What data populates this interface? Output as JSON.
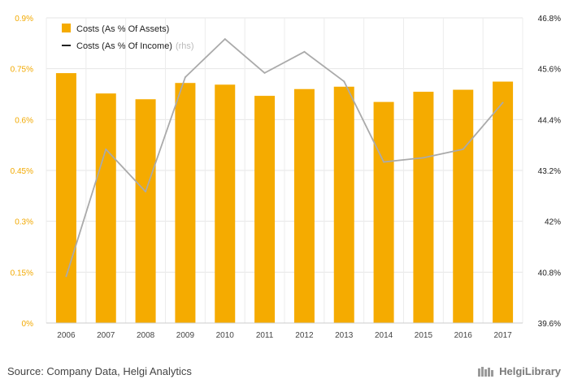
{
  "chart_data": {
    "type": "bar",
    "categories": [
      "2006",
      "2007",
      "2008",
      "2009",
      "2010",
      "2011",
      "2012",
      "2013",
      "2014",
      "2015",
      "2016",
      "2017"
    ],
    "series": [
      {
        "name": "Costs (As % Of Assets)",
        "axis": "left",
        "kind": "bar",
        "color": "#f5ab00",
        "values": [
          0.737,
          0.677,
          0.66,
          0.708,
          0.703,
          0.67,
          0.69,
          0.697,
          0.652,
          0.682,
          0.688,
          0.712
        ]
      },
      {
        "name": "Costs (As % Of Income)",
        "axis": "right",
        "kind": "line",
        "color": "#aaaaaa",
        "values": [
          40.7,
          43.7,
          42.7,
          45.4,
          46.3,
          45.5,
          46.0,
          45.3,
          43.4,
          43.5,
          43.7,
          44.8
        ]
      }
    ],
    "legend": {
      "position": "top-left",
      "items": [
        {
          "label": "Costs (As % Of Assets)",
          "marker": "bar-swatch"
        },
        {
          "label": "Costs (As % Of Income)",
          "suffix": "(rhs)",
          "marker": "line"
        }
      ]
    },
    "y_left": {
      "ylim": [
        0,
        0.9
      ],
      "ticks": [
        0,
        0.15,
        0.3,
        0.45,
        0.6,
        0.75,
        0.9
      ],
      "tick_labels": [
        "0%",
        "0.15%",
        "0.3%",
        "0.45%",
        "0.6%",
        "0.75%",
        "0.9%"
      ],
      "color": "#f2a900"
    },
    "y_right": {
      "ylim": [
        39.6,
        46.8
      ],
      "ticks": [
        39.6,
        40.8,
        42.0,
        43.2,
        44.4,
        45.6,
        46.8
      ],
      "tick_labels": [
        "39.6%",
        "40.8%",
        "42%",
        "43.2%",
        "44.4%",
        "45.6%",
        "46.8%"
      ]
    },
    "grid": true
  },
  "footer": {
    "source": "Source: Company Data, Helgi Analytics",
    "brand": "HelgiLibrary"
  }
}
